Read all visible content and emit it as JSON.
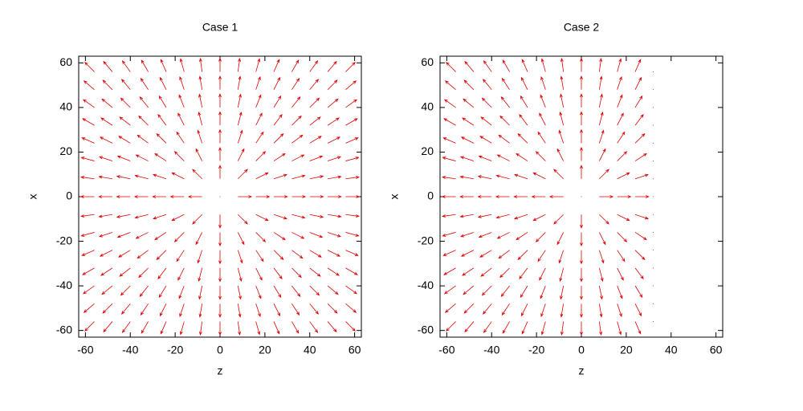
{
  "chart_data": [
    {
      "type": "quiver",
      "title": "Case 1",
      "xlabel": "z",
      "ylabel": "x",
      "color": "#dd0000",
      "xlim": [
        -63,
        63
      ],
      "ylim": [
        -63,
        63
      ],
      "xticks": [
        -60,
        -40,
        -20,
        0,
        20,
        40,
        60
      ],
      "yticks": [
        -60,
        -40,
        -20,
        0,
        20,
        40,
        60
      ],
      "z": [
        -56,
        -48,
        -40,
        -32,
        -24,
        -16,
        -8,
        0,
        8,
        16,
        24,
        32,
        40,
        48,
        56
      ],
      "x": [
        -56,
        -48,
        -40,
        -32,
        -24,
        -16,
        -8,
        0,
        8,
        16,
        24,
        32,
        40,
        48,
        56
      ],
      "u": [
        [
          -4.2,
          -3.9,
          -3.5,
          -3.0,
          -2.4,
          -1.6,
          -0.8,
          0,
          0.8,
          1.6,
          2.4,
          3.0,
          3.5,
          3.9,
          4.2
        ],
        [
          -4.6,
          -4.2,
          -3.8,
          -3.3,
          -2.7,
          -1.9,
          -1.0,
          0,
          1.0,
          1.9,
          2.7,
          3.3,
          3.8,
          4.2,
          4.6
        ],
        [
          -4.9,
          -4.6,
          -4.2,
          -3.7,
          -3.1,
          -2.2,
          -1.2,
          0,
          1.2,
          2.2,
          3.1,
          3.7,
          4.2,
          4.6,
          4.9
        ],
        [
          -5.2,
          -5.0,
          -4.7,
          -4.2,
          -3.6,
          -2.7,
          -1.5,
          0,
          1.5,
          2.7,
          3.6,
          4.2,
          4.7,
          5.0,
          5.2
        ],
        [
          -5.5,
          -5.4,
          -5.1,
          -4.8,
          -4.2,
          -3.3,
          -1.9,
          0,
          1.9,
          3.3,
          4.2,
          4.8,
          5.1,
          5.4,
          5.5
        ],
        [
          -5.8,
          -5.7,
          -5.6,
          -5.4,
          -5.0,
          -4.2,
          -2.7,
          0,
          2.7,
          4.2,
          5.0,
          5.4,
          5.6,
          5.7,
          5.8
        ],
        [
          -5.9,
          -5.9,
          -5.9,
          -5.8,
          -5.7,
          -5.4,
          -4.2,
          0,
          4.2,
          5.4,
          5.7,
          5.8,
          5.9,
          5.9,
          5.9
        ],
        [
          -6,
          -6,
          -6,
          -6,
          -6,
          -6,
          -6,
          0,
          6,
          6,
          6,
          6,
          6,
          6,
          6
        ],
        [
          -5.9,
          -5.9,
          -5.9,
          -5.8,
          -5.7,
          -5.4,
          -4.2,
          0,
          4.2,
          5.4,
          5.7,
          5.8,
          5.9,
          5.9,
          5.9
        ],
        [
          -5.8,
          -5.7,
          -5.6,
          -5.4,
          -5.0,
          -4.2,
          -2.7,
          0,
          2.7,
          4.2,
          5.0,
          5.4,
          5.6,
          5.7,
          5.8
        ],
        [
          -5.5,
          -5.4,
          -5.1,
          -4.8,
          -4.2,
          -3.3,
          -1.9,
          0,
          1.9,
          3.3,
          4.2,
          4.8,
          5.1,
          5.4,
          5.5
        ],
        [
          -5.2,
          -5.0,
          -4.7,
          -4.2,
          -3.6,
          -2.7,
          -1.5,
          0,
          1.5,
          2.7,
          3.6,
          4.2,
          4.7,
          5.0,
          5.2
        ],
        [
          -4.9,
          -4.6,
          -4.2,
          -3.7,
          -3.1,
          -2.2,
          -1.2,
          0,
          1.2,
          2.2,
          3.1,
          3.7,
          4.2,
          4.6,
          4.9
        ],
        [
          -4.6,
          -4.2,
          -3.8,
          -3.3,
          -2.7,
          -1.9,
          -1.0,
          0,
          1.0,
          1.9,
          2.7,
          3.3,
          3.8,
          4.2,
          4.6
        ],
        [
          -4.2,
          -3.9,
          -3.5,
          -3.0,
          -2.4,
          -1.6,
          -0.8,
          0,
          0.8,
          1.6,
          2.4,
          3.0,
          3.5,
          3.9,
          4.2
        ]
      ],
      "v": [
        [
          -4.2,
          -4.6,
          -4.9,
          -5.2,
          -5.5,
          -5.8,
          -5.9,
          -6,
          -5.9,
          -5.8,
          -5.5,
          -5.2,
          -4.9,
          -4.6,
          -4.2
        ],
        [
          -3.9,
          -4.2,
          -4.6,
          -5.0,
          -5.4,
          -5.7,
          -5.9,
          -6,
          -5.9,
          -5.7,
          -5.4,
          -5.0,
          -4.6,
          -4.2,
          -3.9
        ],
        [
          -3.5,
          -3.8,
          -4.2,
          -4.7,
          -5.1,
          -5.6,
          -5.9,
          -6,
          -5.9,
          -5.6,
          -5.1,
          -4.7,
          -4.2,
          -3.8,
          -3.5
        ],
        [
          -3.0,
          -3.3,
          -3.7,
          -4.2,
          -4.8,
          -5.4,
          -5.8,
          -6,
          -5.8,
          -5.4,
          -4.8,
          -4.2,
          -3.7,
          -3.3,
          -3.0
        ],
        [
          -2.4,
          -2.7,
          -3.1,
          -3.6,
          -4.2,
          -5.0,
          -5.7,
          -6,
          -5.7,
          -5.0,
          -4.2,
          -3.6,
          -3.1,
          -2.7,
          -2.4
        ],
        [
          -1.6,
          -1.9,
          -2.2,
          -2.7,
          -3.3,
          -4.2,
          -5.4,
          -6,
          -5.4,
          -4.2,
          -3.3,
          -2.7,
          -2.2,
          -1.9,
          -1.6
        ],
        [
          -0.8,
          -1.0,
          -1.2,
          -1.5,
          -1.9,
          -2.7,
          -4.2,
          -6,
          -4.2,
          -2.7,
          -1.9,
          -1.5,
          -1.2,
          -1.0,
          -0.8
        ],
        [
          0,
          0,
          0,
          0,
          0,
          0,
          0,
          0,
          0,
          0,
          0,
          0,
          0,
          0,
          0
        ],
        [
          0.8,
          1.0,
          1.2,
          1.5,
          1.9,
          2.7,
          4.2,
          6,
          4.2,
          2.7,
          1.9,
          1.5,
          1.2,
          1.0,
          0.8
        ],
        [
          1.6,
          1.9,
          2.2,
          2.7,
          3.3,
          4.2,
          5.4,
          6,
          5.4,
          4.2,
          3.3,
          2.7,
          2.2,
          1.9,
          1.6
        ],
        [
          2.4,
          2.7,
          3.1,
          3.6,
          4.2,
          5.0,
          5.7,
          6,
          5.7,
          5.0,
          4.2,
          3.6,
          3.1,
          2.7,
          2.4
        ],
        [
          3.0,
          3.3,
          3.7,
          4.2,
          4.8,
          5.4,
          5.8,
          6,
          5.8,
          5.4,
          4.8,
          4.2,
          3.7,
          3.3,
          3.0
        ],
        [
          3.5,
          3.8,
          4.2,
          4.7,
          5.1,
          5.6,
          5.9,
          6,
          5.9,
          5.6,
          5.1,
          4.7,
          4.2,
          3.8,
          3.5
        ],
        [
          3.9,
          4.2,
          4.6,
          5.0,
          5.4,
          5.7,
          5.9,
          6,
          5.9,
          5.7,
          5.4,
          5.0,
          4.6,
          4.2,
          3.9
        ],
        [
          4.2,
          4.6,
          4.9,
          5.2,
          5.5,
          5.8,
          5.9,
          6,
          5.9,
          5.8,
          5.5,
          5.2,
          4.9,
          4.6,
          4.2
        ]
      ]
    },
    {
      "type": "quiver",
      "title": "Case 2",
      "xlabel": "z",
      "ylabel": "x",
      "color": "#dd0000",
      "xlim": [
        -63,
        63
      ],
      "ylim": [
        -63,
        63
      ],
      "xticks": [
        -60,
        -40,
        -20,
        0,
        20,
        40,
        60
      ],
      "yticks": [
        -60,
        -40,
        -20,
        0,
        20,
        40,
        60
      ],
      "z": [
        -56,
        -48,
        -40,
        -32,
        -24,
        -16,
        -8,
        0,
        8,
        16,
        24,
        32
      ],
      "x": [
        -56,
        -48,
        -40,
        -32,
        -24,
        -16,
        -8,
        0,
        8,
        16,
        24,
        32,
        40,
        48,
        56
      ],
      "u": [
        [
          -4.2,
          -3.9,
          -3.5,
          -3.0,
          -2.4,
          -1.6,
          -0.8,
          0,
          0.8,
          1.6,
          2.4,
          0
        ],
        [
          -4.6,
          -4.2,
          -3.8,
          -3.3,
          -2.7,
          -1.9,
          -1.0,
          0,
          1.0,
          1.9,
          2.7,
          0
        ],
        [
          -4.9,
          -4.6,
          -4.2,
          -3.7,
          -3.1,
          -2.2,
          -1.2,
          0,
          1.2,
          2.2,
          3.1,
          0
        ],
        [
          -5.2,
          -5.0,
          -4.7,
          -4.2,
          -3.6,
          -2.7,
          -1.5,
          0,
          1.5,
          2.7,
          3.6,
          0
        ],
        [
          -5.5,
          -5.4,
          -5.1,
          -4.8,
          -4.2,
          -3.3,
          -1.9,
          0,
          1.9,
          3.3,
          4.2,
          0
        ],
        [
          -5.8,
          -5.7,
          -5.6,
          -5.4,
          -5.0,
          -4.2,
          -2.7,
          0,
          2.7,
          4.2,
          5.0,
          0
        ],
        [
          -5.9,
          -5.9,
          -5.9,
          -5.8,
          -5.7,
          -5.4,
          -4.2,
          0,
          4.2,
          5.4,
          5.7,
          0
        ],
        [
          -6,
          -6,
          -6,
          -6,
          -6,
          -6,
          -6,
          0,
          6,
          6,
          6,
          0
        ],
        [
          -5.9,
          -5.9,
          -5.9,
          -5.8,
          -5.7,
          -5.4,
          -4.2,
          0,
          4.2,
          5.4,
          5.7,
          0
        ],
        [
          -5.8,
          -5.7,
          -5.6,
          -5.4,
          -5.0,
          -4.2,
          -2.7,
          0,
          2.7,
          4.2,
          5.0,
          0
        ],
        [
          -5.5,
          -5.4,
          -5.1,
          -4.8,
          -4.2,
          -3.3,
          -1.9,
          0,
          1.9,
          3.3,
          4.2,
          0
        ],
        [
          -5.2,
          -5.0,
          -4.7,
          -4.2,
          -3.6,
          -2.7,
          -1.5,
          0,
          1.5,
          2.7,
          3.6,
          0
        ],
        [
          -4.9,
          -4.6,
          -4.2,
          -3.7,
          -3.1,
          -2.2,
          -1.2,
          0,
          1.2,
          2.2,
          3.1,
          0
        ],
        [
          -4.6,
          -4.2,
          -3.8,
          -3.3,
          -2.7,
          -1.9,
          -1.0,
          0,
          1.0,
          1.9,
          2.7,
          0
        ],
        [
          -4.2,
          -3.9,
          -3.5,
          -3.0,
          -2.4,
          -1.6,
          -0.8,
          0,
          0.8,
          1.6,
          2.4,
          0
        ]
      ],
      "v": [
        [
          -4.2,
          -4.6,
          -4.9,
          -5.2,
          -5.5,
          -5.8,
          -5.9,
          -6,
          -5.9,
          -5.8,
          -5.5,
          0
        ],
        [
          -3.9,
          -4.2,
          -4.6,
          -5.0,
          -5.4,
          -5.7,
          -5.9,
          -6,
          -5.9,
          -5.7,
          -5.4,
          0
        ],
        [
          -3.5,
          -3.8,
          -4.2,
          -4.7,
          -5.1,
          -5.6,
          -5.9,
          -6,
          -5.9,
          -5.6,
          -5.1,
          0
        ],
        [
          -3.0,
          -3.3,
          -3.7,
          -4.2,
          -4.8,
          -5.4,
          -5.8,
          -6,
          -5.8,
          -5.4,
          -4.8,
          0
        ],
        [
          -2.4,
          -2.7,
          -3.1,
          -3.6,
          -4.2,
          -5.0,
          -5.7,
          -6,
          -5.7,
          -5.0,
          -4.2,
          0
        ],
        [
          -1.6,
          -1.9,
          -2.2,
          -2.7,
          -3.3,
          -4.2,
          -5.4,
          -6,
          -5.4,
          -4.2,
          -3.3,
          0
        ],
        [
          -0.8,
          -1.0,
          -1.2,
          -1.5,
          -1.9,
          -2.7,
          -4.2,
          -6,
          -4.2,
          -2.7,
          -1.9,
          0
        ],
        [
          0,
          0,
          0,
          0,
          0,
          0,
          0,
          0,
          0,
          0,
          0,
          0
        ],
        [
          0.8,
          1.0,
          1.2,
          1.5,
          1.9,
          2.7,
          4.2,
          6,
          4.2,
          2.7,
          1.9,
          0
        ],
        [
          1.6,
          1.9,
          2.2,
          2.7,
          3.3,
          4.2,
          5.4,
          6,
          5.4,
          4.2,
          3.3,
          0
        ],
        [
          2.4,
          2.7,
          3.1,
          3.6,
          4.2,
          5.0,
          5.7,
          6,
          5.7,
          5.0,
          4.2,
          0
        ],
        [
          3.0,
          3.3,
          3.7,
          4.2,
          4.8,
          5.4,
          5.8,
          6,
          5.8,
          5.4,
          4.8,
          0
        ],
        [
          3.5,
          3.8,
          4.2,
          4.7,
          5.1,
          5.6,
          5.9,
          6,
          5.9,
          5.6,
          5.1,
          0
        ],
        [
          3.9,
          4.2,
          4.6,
          5.0,
          5.4,
          5.7,
          5.9,
          6,
          5.9,
          5.7,
          5.4,
          0
        ],
        [
          4.2,
          4.6,
          4.9,
          5.2,
          5.5,
          5.8,
          5.9,
          6,
          5.9,
          5.8,
          5.5,
          0
        ]
      ]
    }
  ]
}
